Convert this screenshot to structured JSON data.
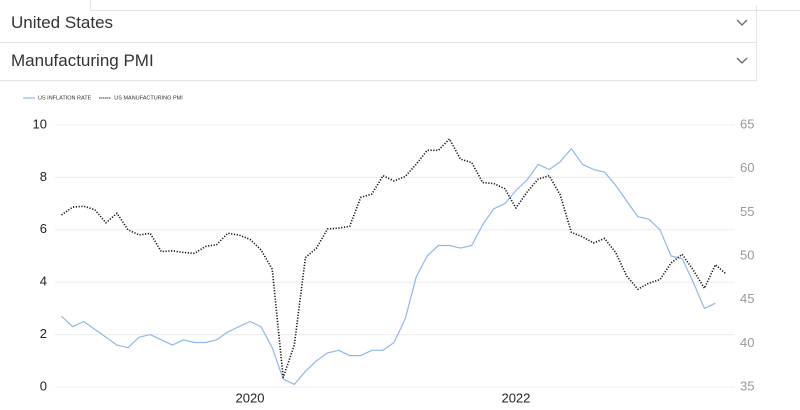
{
  "selectors": [
    "United States",
    "Manufacturing PMI"
  ],
  "chart_data": {
    "type": "line",
    "x": [
      2018.583,
      2018.667,
      2018.75,
      2018.833,
      2018.917,
      2019,
      2019.083,
      2019.167,
      2019.25,
      2019.333,
      2019.417,
      2019.5,
      2019.583,
      2019.667,
      2019.75,
      2019.833,
      2019.917,
      2020,
      2020.083,
      2020.167,
      2020.25,
      2020.333,
      2020.417,
      2020.5,
      2020.583,
      2020.667,
      2020.75,
      2020.833,
      2020.917,
      2021,
      2021.083,
      2021.167,
      2021.25,
      2021.333,
      2021.417,
      2021.5,
      2021.583,
      2021.667,
      2021.75,
      2021.833,
      2021.917,
      2022,
      2022.083,
      2022.167,
      2022.25,
      2022.333,
      2022.417,
      2022.5,
      2022.583,
      2022.667,
      2022.75,
      2022.833,
      2022.917,
      2023,
      2023.083,
      2023.167,
      2023.25,
      2023.333,
      2023.417,
      2023.5,
      2023.583
    ],
    "xlim": [
      2018.5,
      2023.7
    ],
    "xticks": [
      2020,
      2022
    ],
    "ylim": [
      0,
      10
    ],
    "yticks": [
      0,
      2,
      4,
      6,
      8,
      10
    ],
    "y2lim": [
      35,
      65
    ],
    "y2ticks": [
      35,
      40,
      45,
      50,
      55,
      60,
      65
    ],
    "grid": true,
    "series": [
      {
        "name": "US INFLATION RATE",
        "color": "#8fb8ea",
        "values": [
          2.7,
          2.3,
          2.5,
          2.2,
          1.9,
          1.6,
          1.5,
          1.9,
          2.0,
          1.8,
          1.6,
          1.8,
          1.7,
          1.7,
          1.8,
          2.1,
          2.3,
          2.5,
          2.3,
          1.5,
          0.3,
          0.1,
          0.6,
          1.0,
          1.3,
          1.4,
          1.2,
          1.2,
          1.4,
          1.4,
          1.7,
          2.6,
          4.2,
          5.0,
          5.4,
          5.4,
          5.3,
          5.4,
          6.2,
          6.8,
          7.0,
          7.5,
          7.9,
          8.5,
          8.3,
          8.6,
          9.1,
          8.5,
          8.3,
          8.2,
          7.7,
          7.1,
          6.5,
          6.4,
          6.0,
          5.0,
          4.9,
          4.0,
          3.0,
          3.2,
          null
        ]
      },
      {
        "name": "US MANUFACTURING PMI",
        "color": "#111111",
        "axis": "y2",
        "dash": "dotted",
        "values": [
          54.7,
          55.6,
          55.7,
          55.3,
          53.8,
          54.9,
          53.0,
          52.4,
          52.6,
          50.5,
          50.6,
          50.4,
          50.3,
          51.1,
          51.3,
          52.6,
          52.4,
          51.9,
          50.7,
          48.5,
          36.1,
          39.8,
          49.8,
          50.9,
          53.1,
          53.2,
          53.4,
          56.7,
          57.1,
          59.2,
          58.6,
          59.1,
          60.5,
          62.1,
          62.1,
          63.4,
          61.1,
          60.7,
          58.4,
          58.3,
          57.7,
          55.5,
          57.3,
          58.8,
          59.2,
          57.0,
          52.7,
          52.2,
          51.5,
          52.0,
          50.4,
          47.7,
          46.2,
          46.9,
          47.3,
          49.2,
          50.2,
          48.4,
          46.3,
          49.0,
          47.9
        ]
      }
    ]
  }
}
